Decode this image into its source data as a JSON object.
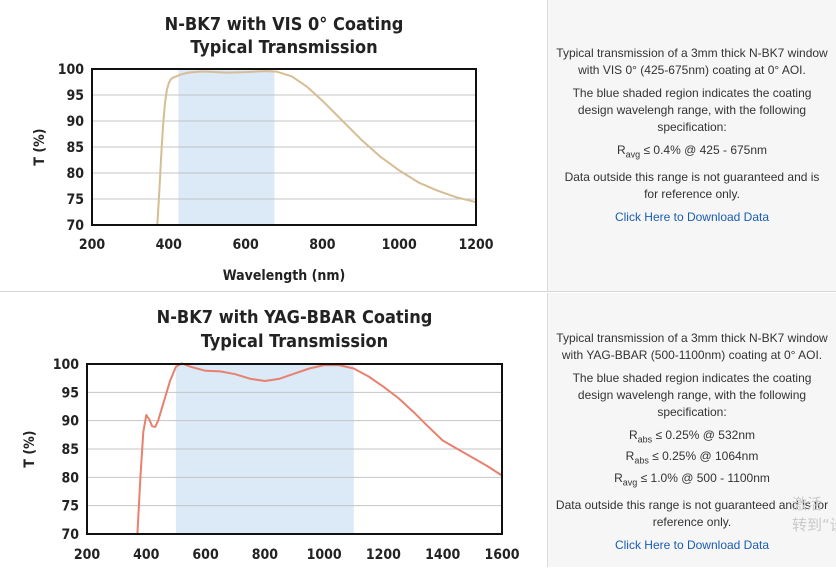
{
  "chart_data": [
    {
      "type": "line",
      "title": "N-BK7 with VIS 0° Coating",
      "subtitle": "Typical Transmission",
      "xlabel": "Wavelength (nm)",
      "ylabel": "T (%)",
      "xlim": [
        200,
        1200
      ],
      "ylim": [
        70,
        100
      ],
      "xticks": [
        "200",
        "400",
        "600",
        "800",
        "1000",
        "1200"
      ],
      "yticks": [
        "70",
        "75",
        "80",
        "85",
        "90",
        "95",
        "100"
      ],
      "grid": true,
      "shaded_region": [
        425,
        675
      ],
      "series_color": "#d7bd94",
      "shade_color": "#dce9f6",
      "x": [
        370,
        375,
        380,
        385,
        390,
        395,
        400,
        405,
        410,
        420,
        430,
        450,
        480,
        500,
        550,
        600,
        650,
        680,
        720,
        760,
        800,
        850,
        900,
        950,
        1000,
        1050,
        1100,
        1150,
        1200
      ],
      "y": [
        70,
        76,
        83,
        89,
        93.5,
        96,
        97.3,
        98,
        98.3,
        98.6,
        98.9,
        99.3,
        99.5,
        99.5,
        99.3,
        99.4,
        99.6,
        99.5,
        98.6,
        96.6,
        93.9,
        90.2,
        86.5,
        83.2,
        80.5,
        78.2,
        76.6,
        75.3,
        74.4
      ]
    },
    {
      "type": "line",
      "title": "N-BK7 with YAG-BBAR Coating",
      "subtitle": "Typical Transmission",
      "xlabel": "",
      "ylabel": "T (%)",
      "xlim": [
        200,
        1600
      ],
      "ylim": [
        70,
        100
      ],
      "xticks": [
        "200",
        "400",
        "600",
        "800",
        "1000",
        "1200",
        "1400",
        "1600"
      ],
      "yticks": [
        "70",
        "75",
        "80",
        "85",
        "90",
        "95",
        "100"
      ],
      "grid": true,
      "shaded_region": [
        500,
        1100
      ],
      "series_color": "#e8806f",
      "shade_color": "#dce9f6",
      "x": [
        370,
        380,
        390,
        400,
        410,
        420,
        430,
        440,
        460,
        480,
        500,
        520,
        550,
        600,
        650,
        700,
        750,
        800,
        850,
        900,
        950,
        1000,
        1050,
        1100,
        1150,
        1200,
        1250,
        1300,
        1350,
        1400,
        1450,
        1500,
        1550,
        1600
      ],
      "y": [
        70,
        80,
        88,
        91,
        90.2,
        89,
        88.9,
        90,
        93.5,
        97,
        99.5,
        100.1,
        99.5,
        98.8,
        98.7,
        98.2,
        97.4,
        97,
        97.4,
        98.3,
        99.2,
        99.8,
        99.8,
        99.2,
        97.8,
        96,
        94,
        91.6,
        89,
        86.5,
        85,
        83.5,
        82,
        80.3
      ]
    }
  ],
  "info": [
    {
      "description": "Typical transmission of a 3mm thick N-BK7 window with VIS 0° (425-675nm) coating at 0° AOI.",
      "shading_note": "The blue shaded region indicates the coating design wavelengh range, with the following specification:",
      "specs": [
        {
          "prefix": "R",
          "sub": "avg",
          "text": " ≤ 0.4% @ 425 - 675nm"
        }
      ],
      "disclaimer": "Data outside this range is not guaranteed and is for reference only.",
      "link": "Click Here to Download Data"
    },
    {
      "description": "Typical transmission of a 3mm thick N-BK7 window with YAG-BBAR (500-1100nm) coating at 0° AOI.",
      "shading_note": "The blue shaded region indicates the coating design wavelengh range, with the following specification:",
      "specs": [
        {
          "prefix": "R",
          "sub": "abs",
          "text": " ≤ 0.25% @ 532nm"
        },
        {
          "prefix": "R",
          "sub": "abs",
          "text": " ≤ 0.25% @ 1064nm"
        },
        {
          "prefix": "R",
          "sub": "avg",
          "text": " ≤ 1.0% @ 500 - 1100nm"
        }
      ],
      "disclaimer": "Data outside this range is not guaranteed and is for reference only.",
      "link": "Click Here to Download Data"
    }
  ],
  "watermark": [
    "激活",
    "转到“设"
  ]
}
